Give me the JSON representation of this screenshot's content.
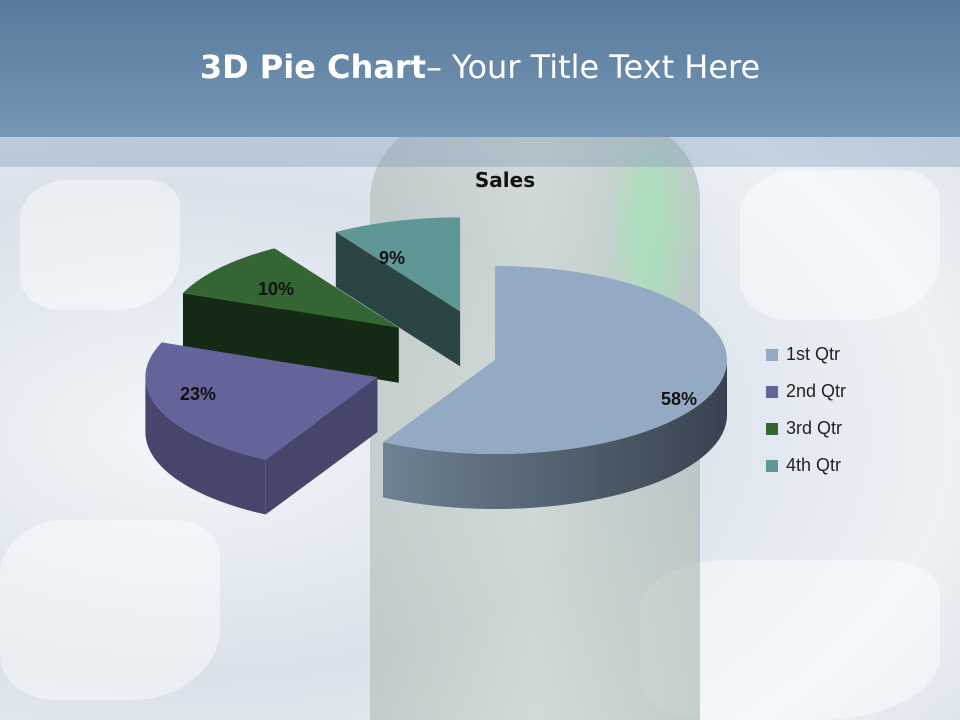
{
  "slide": {
    "title_bold": "3D Pie Chart",
    "title_rest": "– Your Title Text Here"
  },
  "chart_data": {
    "type": "pie",
    "subtype": "3d-exploded",
    "title": "Sales",
    "categories": [
      "1st Qtr",
      "2nd Qtr",
      "3rd Qtr",
      "4th Qtr"
    ],
    "values": [
      58,
      23,
      10,
      9
    ],
    "data_labels": [
      "58%",
      "23%",
      "10%",
      "9%"
    ],
    "colors": [
      "#94aac4",
      "#64649a",
      "#336633",
      "#5f9696"
    ],
    "side_colors": [
      "#4a5868",
      "#46466c",
      "#142a14",
      "#2b4444"
    ],
    "legend_position": "right"
  }
}
